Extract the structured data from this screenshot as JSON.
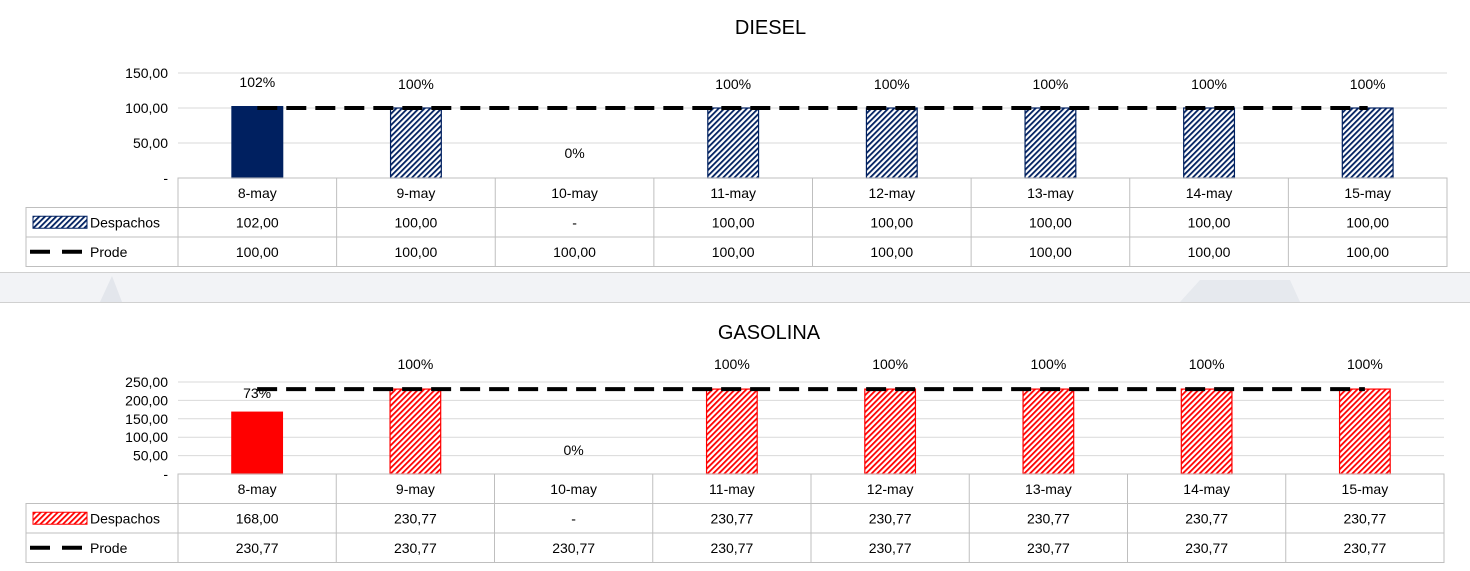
{
  "chart_data": [
    {
      "type": "bar",
      "title": "DIESEL",
      "categories": [
        "8-may",
        "9-may",
        "10-may",
        "11-may",
        "12-may",
        "13-may",
        "14-may",
        "15-may"
      ],
      "y_ticks": [
        {
          "value": 0,
          "label": "-"
        },
        {
          "value": 50,
          "label": "50,00"
        },
        {
          "value": 100,
          "label": "100,00"
        },
        {
          "value": 150,
          "label": "150,00"
        }
      ],
      "ylim": [
        0,
        150
      ],
      "grid": true,
      "legend": "data-table",
      "percent_labels": [
        "102%",
        "100%",
        "0%",
        "100%",
        "100%",
        "100%",
        "100%",
        "100%"
      ],
      "series": [
        {
          "name": "Despachos",
          "chart_type": "bar",
          "values": [
            102,
            100,
            0,
            100,
            100,
            100,
            100,
            100
          ],
          "display": [
            "102,00",
            "100,00",
            "-",
            "100,00",
            "100,00",
            "100,00",
            "100,00",
            "100,00"
          ]
        },
        {
          "name": "Prode",
          "chart_type": "line-dashed",
          "values": [
            100,
            100,
            100,
            100,
            100,
            100,
            100,
            100
          ],
          "display": [
            "100,00",
            "100,00",
            "100,00",
            "100,00",
            "100,00",
            "100,00",
            "100,00",
            "100,00"
          ]
        }
      ],
      "colors": {
        "bar": "#002060",
        "hatch": "#002060",
        "line": "#000000"
      }
    },
    {
      "type": "bar",
      "title": "GASOLINA",
      "categories": [
        "8-may",
        "9-may",
        "10-may",
        "11-may",
        "12-may",
        "13-may",
        "14-may",
        "15-may"
      ],
      "y_ticks": [
        {
          "value": 0,
          "label": "-"
        },
        {
          "value": 50,
          "label": "50,00"
        },
        {
          "value": 100,
          "label": "100,00"
        },
        {
          "value": 150,
          "label": "150,00"
        },
        {
          "value": 200,
          "label": "200,00"
        },
        {
          "value": 250,
          "label": "250,00"
        }
      ],
      "ylim": [
        0,
        250
      ],
      "grid": true,
      "legend": "data-table",
      "percent_labels": [
        "73%",
        "100%",
        "0%",
        "100%",
        "100%",
        "100%",
        "100%",
        "100%"
      ],
      "series": [
        {
          "name": "Despachos",
          "chart_type": "bar",
          "values": [
            168,
            230.77,
            0,
            230.77,
            230.77,
            230.77,
            230.77,
            230.77
          ],
          "display": [
            "168,00",
            "230,77",
            "-",
            "230,77",
            "230,77",
            "230,77",
            "230,77",
            "230,77"
          ]
        },
        {
          "name": "Prode",
          "chart_type": "line-dashed",
          "values": [
            230.77,
            230.77,
            230.77,
            230.77,
            230.77,
            230.77,
            230.77,
            230.77
          ],
          "display": [
            "230,77",
            "230,77",
            "230,77",
            "230,77",
            "230,77",
            "230,77",
            "230,77",
            "230,77"
          ]
        }
      ],
      "colors": {
        "bar": "#ff0000",
        "hatch": "#ff0000",
        "line": "#000000"
      }
    }
  ]
}
